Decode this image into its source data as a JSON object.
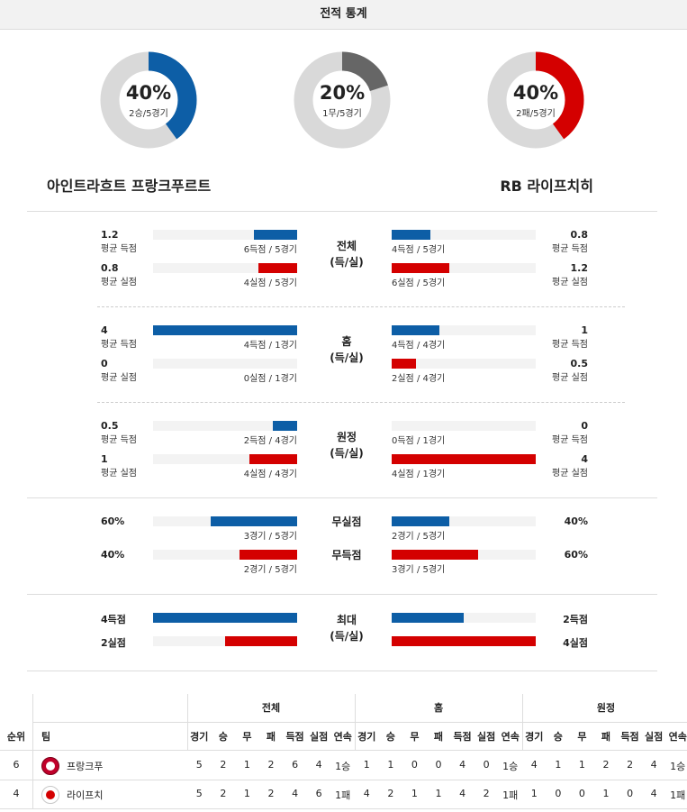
{
  "header": {
    "title": "전적 통계"
  },
  "donuts": [
    {
      "pct_label": "40%",
      "sub": "2승/5경기",
      "fraction": 0.4,
      "color": "#0d5ea6"
    },
    {
      "pct_label": "20%",
      "sub": "1무/5경기",
      "fraction": 0.2,
      "color": "#666666"
    },
    {
      "pct_label": "40%",
      "sub": "2패/5경기",
      "fraction": 0.4,
      "color": "#d40000"
    }
  ],
  "teams": {
    "home": "아인트라흐트 프랑크푸르트",
    "away": "RB 라이프치히"
  },
  "sections": [
    {
      "mid": [
        "전체",
        "(득/실)"
      ],
      "rows": [
        {
          "left_val": "1.2",
          "left_lbl": "평균 득점",
          "left_cap": "6득점 / 5경기",
          "left_fill": 0.3,
          "left_color": "#0d5ea6",
          "right_val": "0.8",
          "right_lbl": "평균 득점",
          "right_cap": "4득점 / 5경기",
          "right_fill": 0.27,
          "right_color": "#0d5ea6"
        },
        {
          "left_val": "0.8",
          "left_lbl": "평균 실점",
          "left_cap": "4실점 / 5경기",
          "left_fill": 0.27,
          "left_color": "#d40000",
          "right_val": "1.2",
          "right_lbl": "평균 실점",
          "right_cap": "6실점 / 5경기",
          "right_fill": 0.4,
          "right_color": "#d40000"
        }
      ]
    },
    {
      "mid": [
        "홈",
        "(득/실)"
      ],
      "rows": [
        {
          "left_val": "4",
          "left_lbl": "평균 득점",
          "left_cap": "4득점 / 1경기",
          "left_fill": 1.0,
          "left_color": "#0d5ea6",
          "right_val": "1",
          "right_lbl": "평균 득점",
          "right_cap": "4득점 / 4경기",
          "right_fill": 0.33,
          "right_color": "#0d5ea6"
        },
        {
          "left_val": "0",
          "left_lbl": "평균 실점",
          "left_cap": "0실점 / 1경기",
          "left_fill": 0.0,
          "left_color": "#d40000",
          "right_val": "0.5",
          "right_lbl": "평균 실점",
          "right_cap": "2실점 / 4경기",
          "right_fill": 0.17,
          "right_color": "#d40000"
        }
      ]
    },
    {
      "mid": [
        "원정",
        "(득/실)"
      ],
      "rows": [
        {
          "left_val": "0.5",
          "left_lbl": "평균 득점",
          "left_cap": "2득점 / 4경기",
          "left_fill": 0.17,
          "left_color": "#0d5ea6",
          "right_val": "0",
          "right_lbl": "평균 득점",
          "right_cap": "0득점 / 1경기",
          "right_fill": 0.0,
          "right_color": "#0d5ea6"
        },
        {
          "left_val": "1",
          "left_lbl": "평균 실점",
          "left_cap": "4실점 / 4경기",
          "left_fill": 0.33,
          "left_color": "#d40000",
          "right_val": "4",
          "right_lbl": "평균 실점",
          "right_cap": "4실점 / 1경기",
          "right_fill": 1.0,
          "right_color": "#d40000"
        }
      ]
    },
    {
      "mid": [
        "무실점",
        "무득점"
      ],
      "rows": [
        {
          "left_val": "60%",
          "left_lbl": "",
          "left_cap": "3경기 / 5경기",
          "left_fill": 0.6,
          "left_color": "#0d5ea6",
          "right_val": "40%",
          "right_lbl": "",
          "right_cap": "2경기 / 5경기",
          "right_fill": 0.4,
          "right_color": "#0d5ea6"
        },
        {
          "left_val": "40%",
          "left_lbl": "",
          "left_cap": "2경기 / 5경기",
          "left_fill": 0.4,
          "left_color": "#d40000",
          "right_val": "60%",
          "right_lbl": "",
          "right_cap": "3경기 / 5경기",
          "right_fill": 0.6,
          "right_color": "#d40000"
        }
      ]
    },
    {
      "mid": [
        "최대",
        "(득/실)"
      ],
      "rows": [
        {
          "left_val": "4득점",
          "left_lbl": "",
          "left_cap": "",
          "left_fill": 1.0,
          "left_color": "#0d5ea6",
          "right_val": "2득점",
          "right_lbl": "",
          "right_cap": "",
          "right_fill": 0.5,
          "right_color": "#0d5ea6"
        },
        {
          "left_val": "2실점",
          "left_lbl": "",
          "left_cap": "",
          "left_fill": 0.5,
          "left_color": "#d40000",
          "right_val": "4실점",
          "right_lbl": "",
          "right_cap": "",
          "right_fill": 1.0,
          "right_color": "#d40000"
        }
      ]
    }
  ],
  "table": {
    "groups": [
      "전체",
      "홈",
      "원정"
    ],
    "headers": {
      "rank": "순위",
      "team": "팀",
      "cols": [
        "경기",
        "승",
        "무",
        "패",
        "득점",
        "실점",
        "연속"
      ]
    },
    "rows": [
      {
        "rank": "6",
        "team": "프랑크푸",
        "logo": "eagle-crest-icon",
        "total": [
          "5",
          "2",
          "1",
          "2",
          "6",
          "4",
          "1승"
        ],
        "home": [
          "1",
          "1",
          "0",
          "0",
          "4",
          "0",
          "1승"
        ],
        "away": [
          "4",
          "1",
          "1",
          "2",
          "2",
          "4",
          "1승"
        ]
      },
      {
        "rank": "4",
        "team": "라이프치",
        "logo": "bull-crest-icon",
        "total": [
          "5",
          "2",
          "1",
          "2",
          "4",
          "6",
          "1패"
        ],
        "home": [
          "4",
          "2",
          "1",
          "1",
          "4",
          "2",
          "1패"
        ],
        "away": [
          "1",
          "0",
          "0",
          "1",
          "0",
          "4",
          "1패"
        ]
      }
    ]
  }
}
